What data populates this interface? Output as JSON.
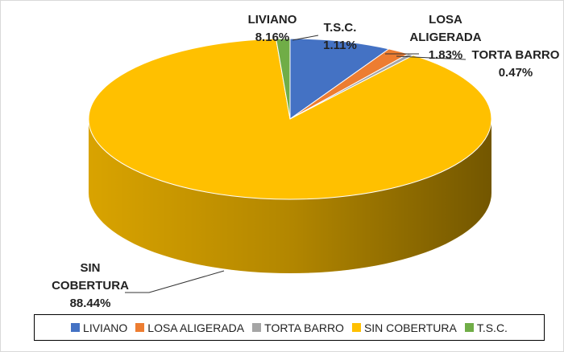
{
  "chart_data": {
    "type": "pie3d",
    "categories": [
      "LIVIANO",
      "LOSA ALIGERADA",
      "TORTA BARRO",
      "SIN COBERTURA",
      "T.S.C."
    ],
    "values": [
      8.16,
      1.83,
      0.47,
      88.44,
      1.11
    ],
    "value_labels": [
      "8.16%",
      "1.83%",
      "0.47%",
      "88.44%",
      "1.11%"
    ],
    "colors": [
      "#4472c4",
      "#ed7d31",
      "#a5a5a5",
      "#ffc000",
      "#70ad47"
    ],
    "legend": "bottom"
  }
}
